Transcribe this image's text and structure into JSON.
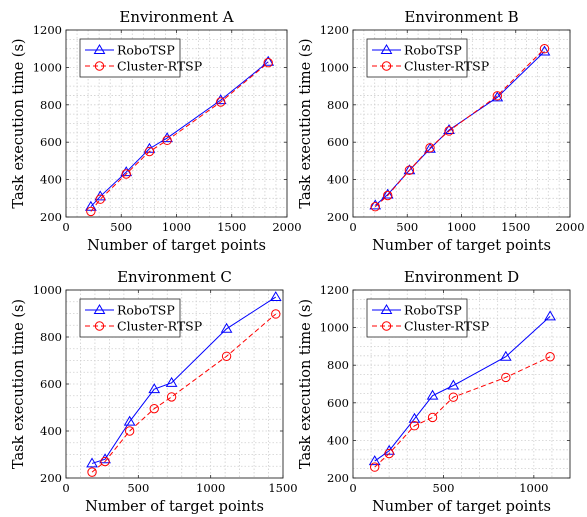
{
  "chart_data": [
    {
      "type": "line",
      "title": "Environment A",
      "xlabel": "Number of target points",
      "ylabel": "Task execution time (s)",
      "xlim": [
        0,
        2000
      ],
      "ylim": [
        200,
        1200
      ],
      "xticks": [
        "0",
        "500",
        "1000",
        "1500",
        "2000"
      ],
      "yticks": [
        "200",
        "400",
        "600",
        "800",
        "1000",
        "1200"
      ],
      "grid": true,
      "legend": "top-left",
      "series": [
        {
          "name": "RoboTSP",
          "color": "#0000ff",
          "marker": "triangle",
          "dash": "solid",
          "x": [
            225,
            310,
            545,
            755,
            915,
            1400,
            1830
          ],
          "y": [
            255,
            310,
            440,
            565,
            622,
            825,
            1030
          ]
        },
        {
          "name": "Cluster-RTSP",
          "color": "#ff0000",
          "marker": "circle",
          "dash": "dashed",
          "x": [
            225,
            310,
            545,
            755,
            915,
            1400,
            1830
          ],
          "y": [
            230,
            295,
            430,
            550,
            610,
            815,
            1025
          ]
        }
      ]
    },
    {
      "type": "line",
      "title": "Environment B",
      "xlabel": "Number of target points",
      "ylabel": "Task execution time (s)",
      "xlim": [
        0,
        2000
      ],
      "ylim": [
        200,
        1200
      ],
      "xticks": [
        "0",
        "500",
        "1000",
        "1500",
        "2000"
      ],
      "yticks": [
        "200",
        "400",
        "600",
        "800",
        "1000",
        "1200"
      ],
      "grid": true,
      "legend": "top-left",
      "series": [
        {
          "name": "RoboTSP",
          "color": "#0000ff",
          "marker": "triangle",
          "dash": "solid",
          "x": [
            205,
            320,
            520,
            710,
            885,
            1330,
            1765
          ],
          "y": [
            262,
            320,
            450,
            565,
            665,
            840,
            1085
          ]
        },
        {
          "name": "Cluster-RTSP",
          "color": "#ff0000",
          "marker": "circle",
          "dash": "dashed",
          "x": [
            205,
            320,
            520,
            710,
            885,
            1330,
            1765
          ],
          "y": [
            255,
            315,
            450,
            570,
            660,
            848,
            1100
          ]
        }
      ]
    },
    {
      "type": "line",
      "title": "Environment C",
      "xlabel": "Number of target points",
      "ylabel": "Task execution time (s)",
      "xlim": [
        0,
        1500
      ],
      "ylim": [
        200,
        1000
      ],
      "xticks": [
        "0",
        "500",
        "1000",
        "1500"
      ],
      "yticks": [
        "200",
        "400",
        "600",
        "800",
        "1000"
      ],
      "grid": true,
      "legend": "top-left",
      "series": [
        {
          "name": "RoboTSP",
          "color": "#0000ff",
          "marker": "triangle",
          "dash": "solid",
          "x": [
            180,
            270,
            440,
            610,
            730,
            1110,
            1450
          ],
          "y": [
            262,
            280,
            440,
            578,
            605,
            835,
            970
          ]
        },
        {
          "name": "Cluster-RTSP",
          "color": "#ff0000",
          "marker": "circle",
          "dash": "dashed",
          "x": [
            180,
            270,
            440,
            610,
            730,
            1110,
            1450
          ],
          "y": [
            225,
            270,
            400,
            495,
            545,
            718,
            898
          ]
        }
      ]
    },
    {
      "type": "line",
      "title": "Environment D",
      "xlabel": "Number of target points",
      "ylabel": "Task execution time (s)",
      "xlim": [
        0,
        1200
      ],
      "ylim": [
        200,
        1200
      ],
      "xticks": [
        "0",
        "500",
        "1000"
      ],
      "yticks": [
        "200",
        "400",
        "600",
        "800",
        "1000",
        "1200"
      ],
      "grid": true,
      "legend": "top-left",
      "series": [
        {
          "name": "RoboTSP",
          "color": "#0000ff",
          "marker": "triangle",
          "dash": "solid",
          "x": [
            120,
            200,
            340,
            440,
            555,
            845,
            1090
          ],
          "y": [
            290,
            345,
            515,
            638,
            692,
            845,
            1060
          ]
        },
        {
          "name": "Cluster-RTSP",
          "color": "#ff0000",
          "marker": "circle",
          "dash": "dashed",
          "x": [
            120,
            200,
            340,
            440,
            555,
            845,
            1090
          ],
          "y": [
            258,
            330,
            478,
            522,
            630,
            735,
            845
          ]
        }
      ]
    }
  ]
}
